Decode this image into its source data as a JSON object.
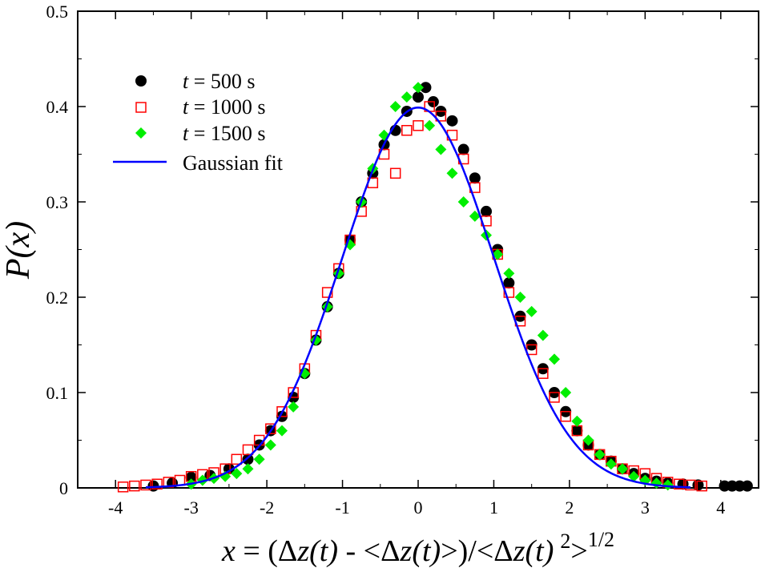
{
  "chart_data": {
    "type": "scatter",
    "xlabel": "x = (Δz(t) - <Δz(t)>)/<Δz(t) 2> 1/2",
    "xlabel_parts": {
      "lhs": "x",
      "mid1": " = (Δ",
      "z1": "z(t)",
      "mid2": " - ",
      "lt1": "<",
      "delta": "Δ",
      "z2": "z(t)",
      "gt1": ">",
      "slash": ")/",
      "lt2": "<",
      "z3": "z(t)",
      "sq": "2",
      "gt2": ">",
      "exp": "1/2"
    },
    "ylabel": "P(x)",
    "xlim": [
      -4.5,
      4.5
    ],
    "ylim": [
      0,
      0.5
    ],
    "xticks": [
      -4,
      -3,
      -2,
      -1,
      0,
      1,
      2,
      3,
      4
    ],
    "xtick_labels": [
      "-4",
      "-3",
      "-2",
      "-1",
      "0",
      "1",
      "2",
      "3",
      "4"
    ],
    "yticks": [
      0,
      0.1,
      0.2,
      0.3,
      0.4,
      0.5
    ],
    "ytick_labels": [
      "0",
      "0.1",
      "0.2",
      "0.3",
      "0.4",
      "0.5"
    ],
    "legend_position": "top-left",
    "series": [
      {
        "name": "t = 500 s",
        "legend_var": "t",
        "legend_rest": " = 500 s",
        "marker": "filled-circle",
        "color": "#000000",
        "x": [
          -3.5,
          -3.25,
          -3.0,
          -2.75,
          -2.5,
          -2.25,
          -2.1,
          -1.95,
          -1.8,
          -1.65,
          -1.5,
          -1.35,
          -1.2,
          -1.05,
          -0.9,
          -0.75,
          -0.6,
          -0.45,
          -0.3,
          -0.15,
          0.0,
          0.1,
          0.2,
          0.3,
          0.45,
          0.6,
          0.75,
          0.9,
          1.05,
          1.2,
          1.35,
          1.5,
          1.65,
          1.8,
          1.95,
          2.1,
          2.25,
          2.4,
          2.55,
          2.7,
          2.85,
          3.0,
          3.15,
          3.3,
          3.5,
          3.7,
          4.05,
          4.15,
          4.25,
          4.35
        ],
        "y": [
          0.002,
          0.005,
          0.011,
          0.013,
          0.02,
          0.03,
          0.045,
          0.06,
          0.075,
          0.095,
          0.12,
          0.155,
          0.19,
          0.225,
          0.26,
          0.3,
          0.33,
          0.36,
          0.375,
          0.395,
          0.41,
          0.42,
          0.405,
          0.395,
          0.385,
          0.355,
          0.325,
          0.29,
          0.25,
          0.215,
          0.18,
          0.15,
          0.125,
          0.1,
          0.08,
          0.06,
          0.045,
          0.035,
          0.028,
          0.02,
          0.015,
          0.01,
          0.007,
          0.005,
          0.004,
          0.003,
          0.002,
          0.002,
          0.002,
          0.002
        ]
      },
      {
        "name": "t = 1000 s",
        "legend_var": "t",
        "legend_rest": " = 1000 s",
        "marker": "open-square",
        "color": "#ff0000",
        "x": [
          -3.9,
          -3.75,
          -3.6,
          -3.45,
          -3.3,
          -3.15,
          -3.0,
          -2.85,
          -2.7,
          -2.55,
          -2.4,
          -2.25,
          -2.1,
          -1.95,
          -1.8,
          -1.65,
          -1.5,
          -1.35,
          -1.2,
          -1.05,
          -0.9,
          -0.75,
          -0.6,
          -0.45,
          -0.3,
          -0.15,
          0.0,
          0.15,
          0.3,
          0.45,
          0.6,
          0.75,
          0.9,
          1.05,
          1.2,
          1.35,
          1.5,
          1.65,
          1.8,
          1.95,
          2.1,
          2.25,
          2.4,
          2.55,
          2.7,
          2.85,
          3.0,
          3.15,
          3.3,
          3.45,
          3.6,
          3.75
        ],
        "y": [
          0.001,
          0.002,
          0.003,
          0.004,
          0.006,
          0.008,
          0.012,
          0.014,
          0.016,
          0.02,
          0.03,
          0.04,
          0.05,
          0.062,
          0.08,
          0.1,
          0.125,
          0.16,
          0.205,
          0.23,
          0.26,
          0.29,
          0.32,
          0.35,
          0.33,
          0.375,
          0.38,
          0.4,
          0.39,
          0.37,
          0.345,
          0.315,
          0.28,
          0.245,
          0.205,
          0.175,
          0.145,
          0.12,
          0.095,
          0.075,
          0.06,
          0.045,
          0.035,
          0.028,
          0.02,
          0.018,
          0.015,
          0.01,
          0.006,
          0.004,
          0.003,
          0.002
        ]
      },
      {
        "name": "t = 1500 s",
        "legend_var": "t",
        "legend_rest": " = 1500 s",
        "marker": "filled-diamond",
        "color": "#00ee00",
        "x": [
          -3.0,
          -2.85,
          -2.7,
          -2.55,
          -2.4,
          -2.25,
          -2.1,
          -1.95,
          -1.8,
          -1.65,
          -1.5,
          -1.35,
          -1.2,
          -1.05,
          -0.9,
          -0.75,
          -0.6,
          -0.45,
          -0.3,
          -0.15,
          0.0,
          0.15,
          0.3,
          0.45,
          0.6,
          0.75,
          0.9,
          1.05,
          1.2,
          1.35,
          1.5,
          1.65,
          1.8,
          1.95,
          2.1,
          2.25,
          2.4,
          2.55,
          2.7,
          2.85,
          3.0,
          3.15,
          3.3
        ],
        "y": [
          0.004,
          0.008,
          0.01,
          0.012,
          0.015,
          0.02,
          0.03,
          0.045,
          0.06,
          0.085,
          0.12,
          0.155,
          0.19,
          0.225,
          0.255,
          0.3,
          0.335,
          0.37,
          0.4,
          0.41,
          0.42,
          0.38,
          0.355,
          0.33,
          0.3,
          0.285,
          0.265,
          0.245,
          0.225,
          0.2,
          0.185,
          0.16,
          0.135,
          0.1,
          0.07,
          0.05,
          0.035,
          0.025,
          0.02,
          0.012,
          0.008,
          0.005,
          0.003
        ]
      }
    ],
    "fit": {
      "name": "Gaussian fit",
      "type": "gaussian",
      "mean": 0,
      "sigma": 1,
      "x_range": [
        -3.6,
        3.6
      ],
      "color": "#0000ff"
    }
  }
}
